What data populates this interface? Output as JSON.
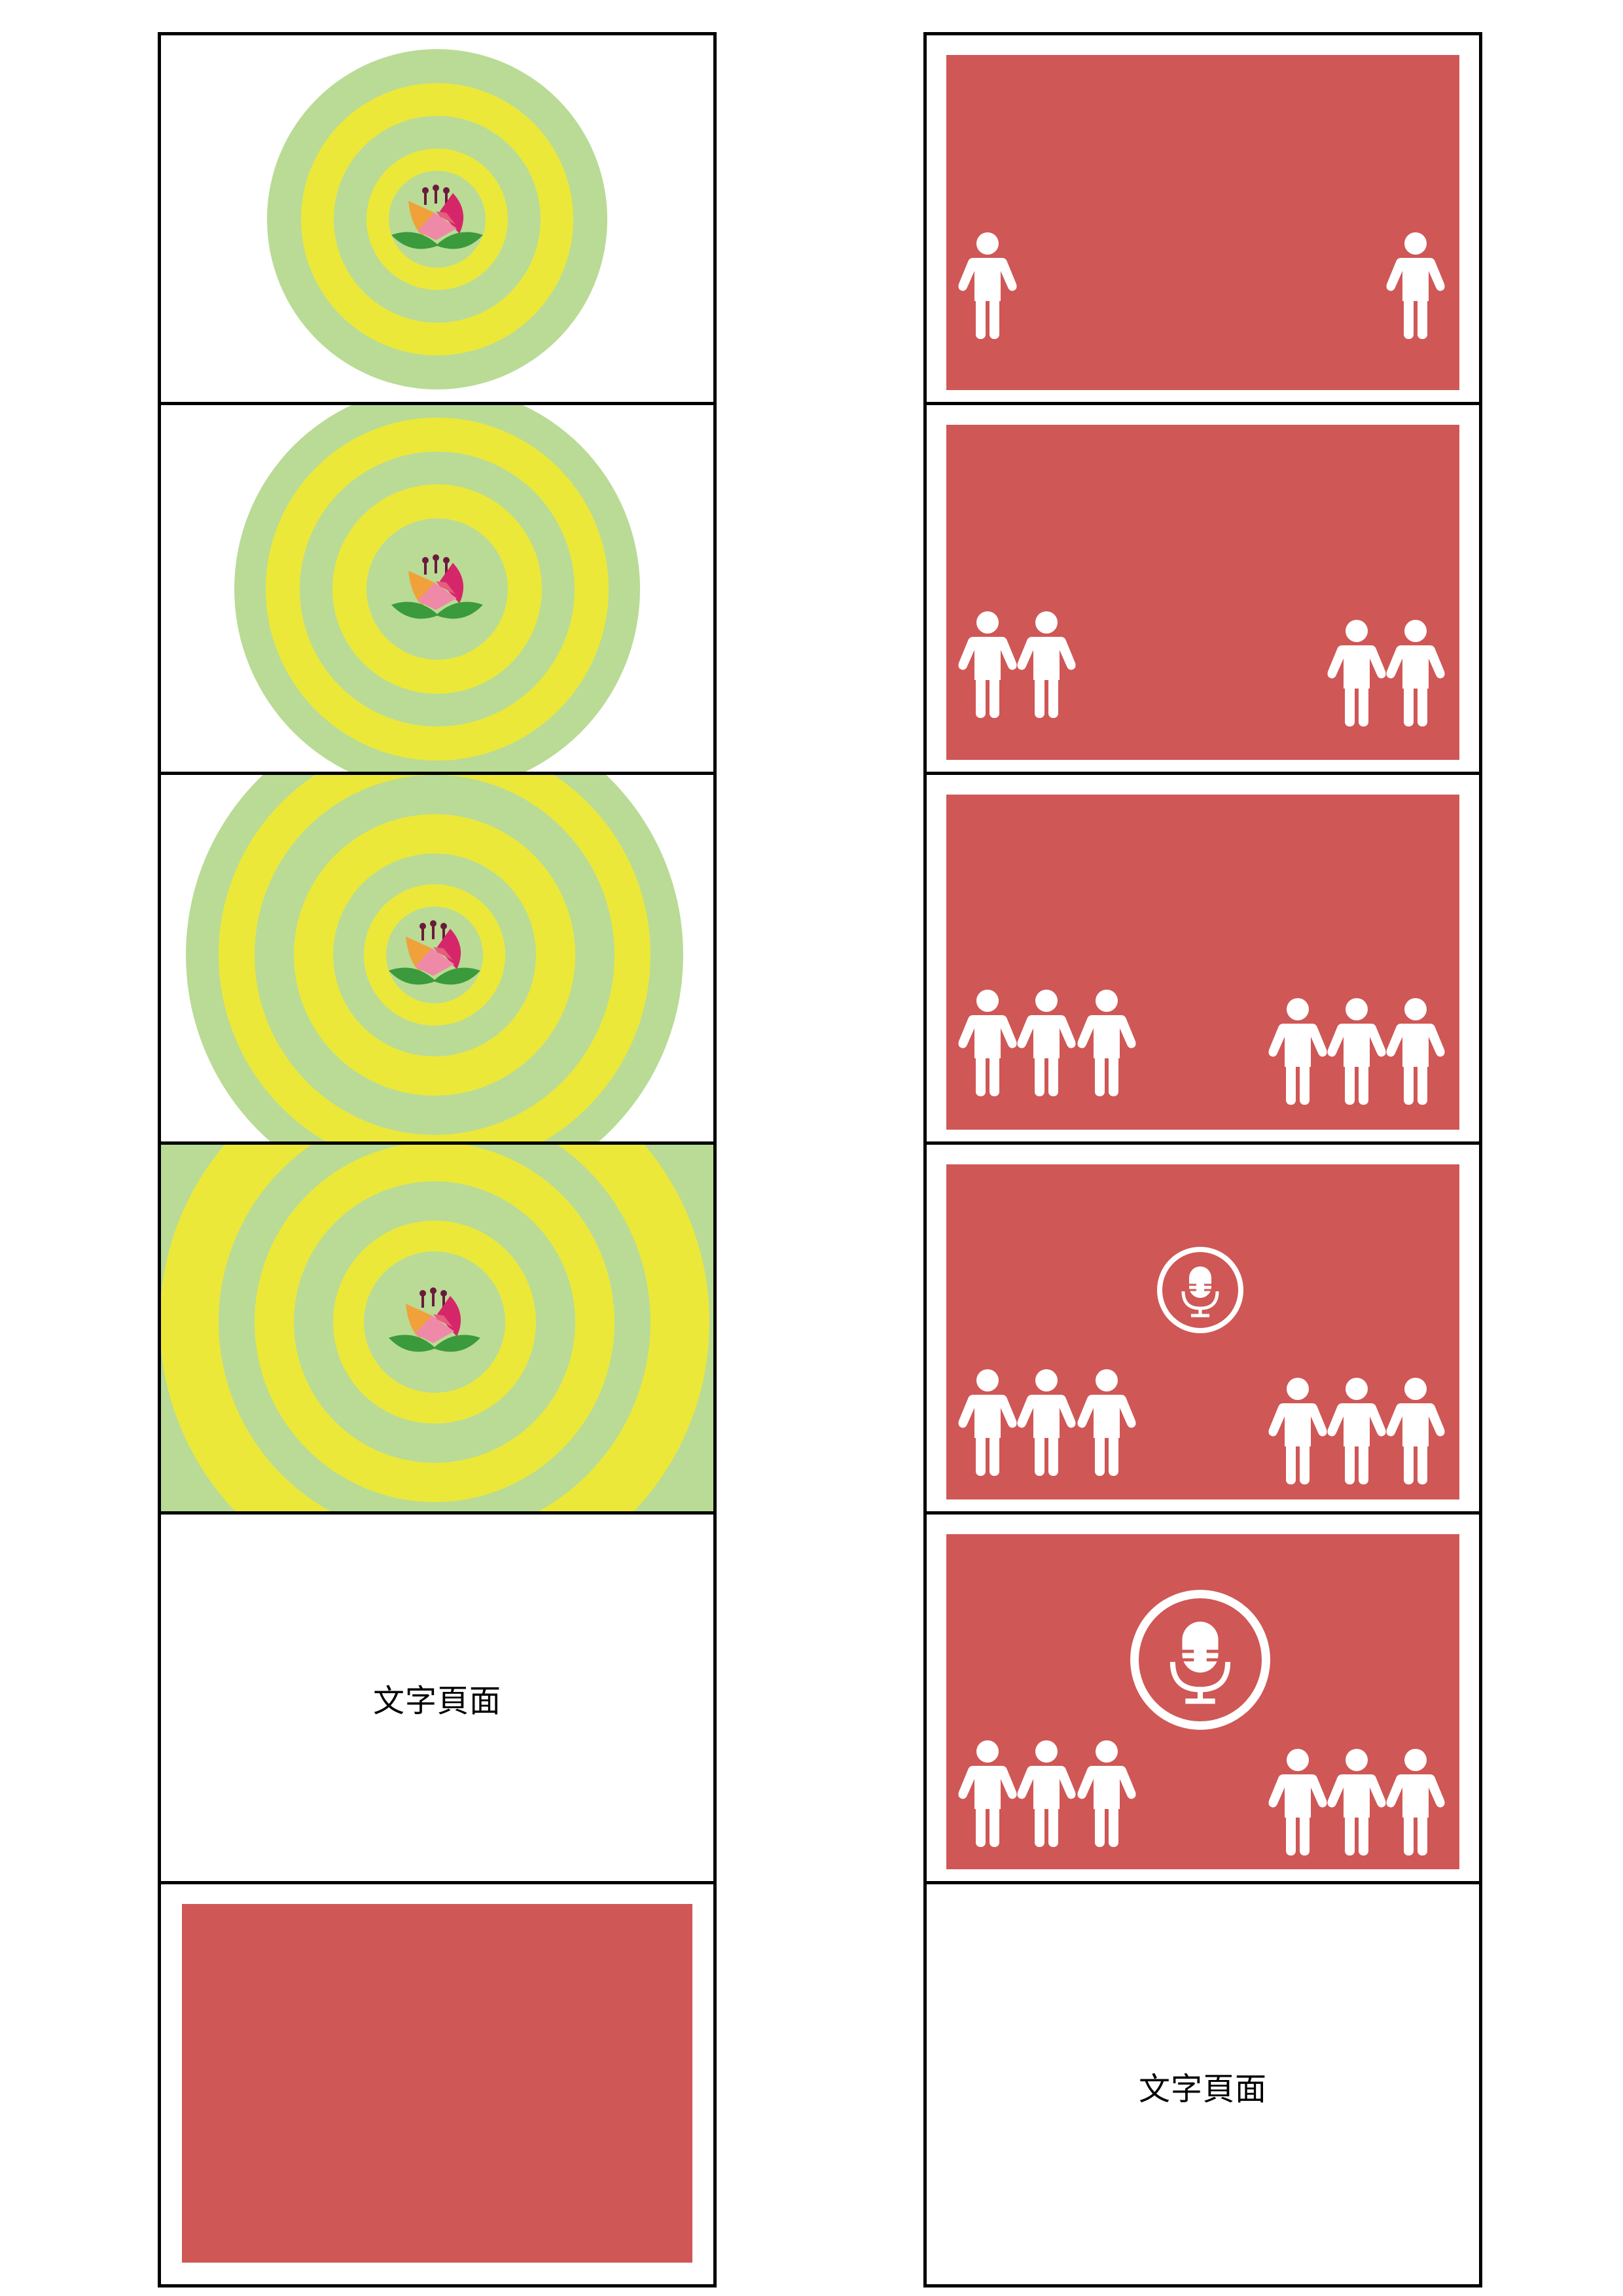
{
  "colors": {
    "outer_ring": "#b9db95",
    "inner_ring": "#ece83a",
    "red_panel": "#cf5756",
    "figure": "#ffffff",
    "border": "#000000"
  },
  "left_column": {
    "panels": [
      {
        "kind": "target-flower",
        "icon": "lotus-flower-icon"
      },
      {
        "kind": "target-flower",
        "icon": "lotus-flower-icon"
      },
      {
        "kind": "target-flower",
        "icon": "lotus-flower-icon"
      },
      {
        "kind": "target-flower-fullbleed",
        "icon": "lotus-flower-icon"
      },
      {
        "kind": "text",
        "text": "文字頁面"
      },
      {
        "kind": "red-panel"
      }
    ]
  },
  "right_column": {
    "panels": [
      {
        "kind": "people",
        "people_per_side": 1
      },
      {
        "kind": "people",
        "people_per_side": 2
      },
      {
        "kind": "people",
        "people_per_side": 3
      },
      {
        "kind": "people-mic",
        "people_per_side": 3,
        "icon": "microphone-icon"
      },
      {
        "kind": "people-mic",
        "people_per_side": 3,
        "icon": "microphone-icon"
      },
      {
        "kind": "text",
        "text": "文字頁面"
      }
    ]
  }
}
